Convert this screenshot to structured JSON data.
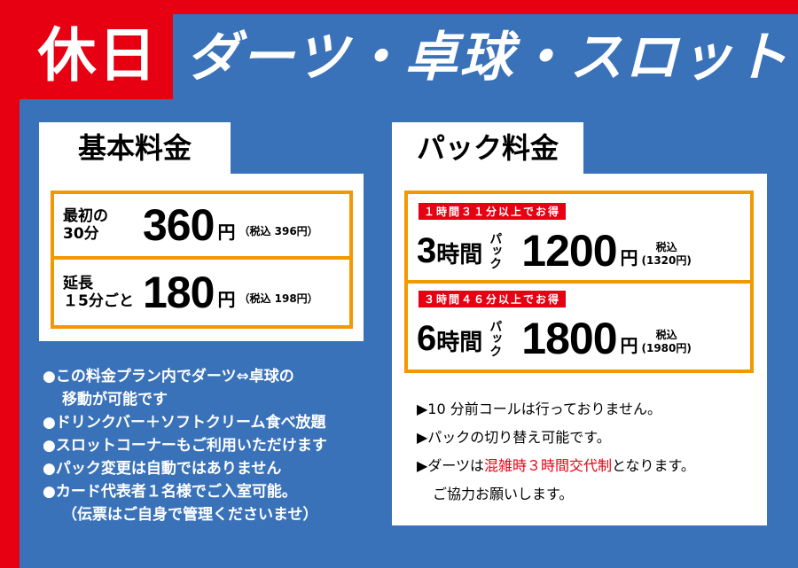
{
  "header": {
    "badge": "休日",
    "title": "ダーツ・卓球・スロット"
  },
  "colors": {
    "red": "#e60012",
    "blue": "#3a72b9",
    "orange": "#f39800"
  },
  "basic": {
    "tab": "基本料金",
    "rows": [
      {
        "label_line1": "最初の",
        "label_line2": "30分",
        "price": "360",
        "yen": "円",
        "tax": "（税込 396円）"
      },
      {
        "label_line1": "延長",
        "label_line2": "１5分ごと",
        "price": "180",
        "yen": "円",
        "tax": "（税込 198円）"
      }
    ]
  },
  "pack": {
    "tab": "パック料金",
    "rows": [
      {
        "badge": "１時間３１分以上でお得",
        "hours": "3",
        "hours_unit": "時間",
        "pack": "パック",
        "price": "1200",
        "yen": "円",
        "tax_label": "税込",
        "tax": "(1320円)"
      },
      {
        "badge": "３時間４６分以上でお得",
        "hours": "6",
        "hours_unit": "時間",
        "pack": "パック",
        "price": "1800",
        "yen": "円",
        "tax_label": "税込",
        "tax": "(1980円)"
      }
    ]
  },
  "notes": [
    "●この料金プラン内でダーツ⇔卓球の",
    "移動が可能です",
    "●ドリンクバー＋ソフトクリーム食べ放題",
    "●スロットコーナーもご利用いただけます",
    "●パック変更は自動ではありません",
    "●カード代表者１名様でご入室可能。",
    "（伝票はご自身で管理くださいませ）"
  ],
  "pack_notes": {
    "line1": "▶10 分前コールは行っておりません。",
    "line2": "▶パックの切り替え可能です。",
    "line3_pre": "▶ダーツは",
    "line3_red": "混雑時３時間交代制",
    "line3_post": "となります。",
    "line4": "ご協力お願いします。"
  }
}
